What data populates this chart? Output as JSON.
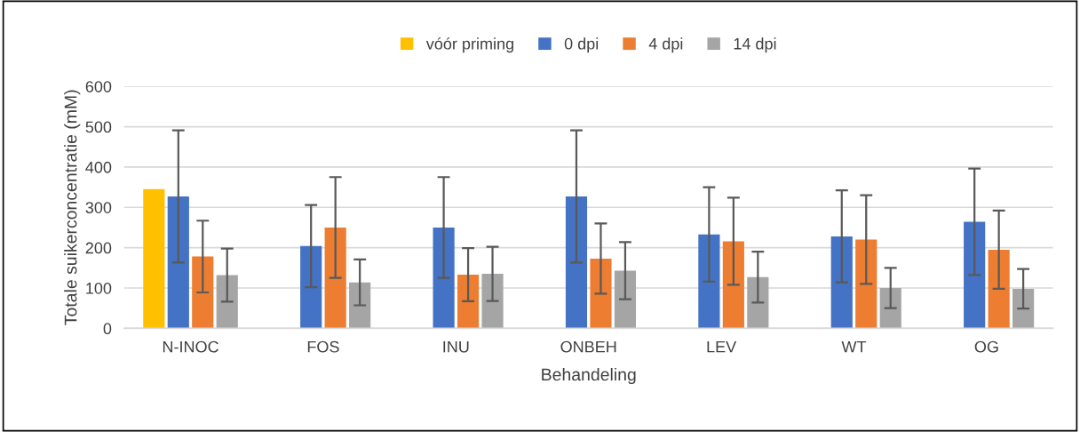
{
  "chart_data": {
    "type": "bar",
    "xlabel": "Behandeling",
    "ylabel": "Totale suikerconcentratie (mM)",
    "categories": [
      "N-INOC",
      "FOS",
      "INU",
      "ONBEH",
      "LEV",
      "WT",
      "OG"
    ],
    "series": [
      {
        "name": "vóór priming",
        "color": "#ffc000",
        "values": [
          345,
          null,
          null,
          null,
          null,
          null,
          null
        ]
      },
      {
        "name": "0 dpi",
        "color": "#4472c4",
        "values": [
          327,
          204,
          250,
          327,
          233,
          228,
          264
        ],
        "errors": [
          164,
          102,
          125,
          164,
          117,
          114,
          132
        ]
      },
      {
        "name": "4 dpi",
        "color": "#ed7d31",
        "values": [
          178,
          250,
          133,
          173,
          216,
          220,
          195
        ],
        "errors": [
          89,
          125,
          66,
          87,
          108,
          110,
          97
        ]
      },
      {
        "name": "14 dpi",
        "color": "#a5a5a5",
        "values": [
          132,
          114,
          135,
          143,
          127,
          100,
          98
        ],
        "errors": [
          66,
          57,
          67,
          71,
          63,
          50,
          49
        ]
      }
    ],
    "ylim": [
      0,
      600
    ],
    "yticks": [
      0,
      100,
      200,
      300,
      400,
      500,
      600
    ],
    "grid": "y",
    "legend": "top"
  }
}
